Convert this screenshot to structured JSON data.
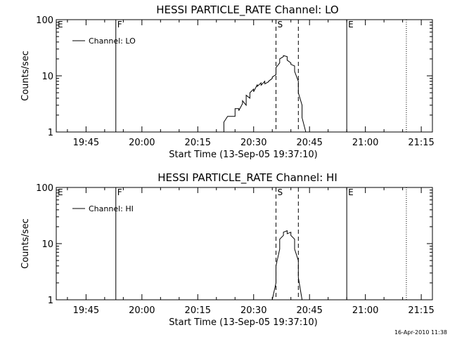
{
  "footer": {
    "timestamp": "16-Apr-2010 11:38"
  },
  "chart_data": [
    {
      "type": "line",
      "title": "HESSI PARTICLE_RATE Channel: LO",
      "xlabel": "Start Time (13-Sep-05 19:37:10)",
      "ylabel": "Counts/sec",
      "y_scale": "log",
      "ylim": [
        1,
        100
      ],
      "y_ticks": [
        {
          "value": 1,
          "label": "1"
        },
        {
          "value": 10,
          "label": "10"
        },
        {
          "value": 100,
          "label": "100"
        }
      ],
      "xlim": [
        "19:37",
        "21:18"
      ],
      "x_ticks": [
        "19:45",
        "20:00",
        "20:15",
        "20:30",
        "20:45",
        "21:00",
        "21:15"
      ],
      "legend": {
        "position": "top-left",
        "entries": [
          "Channel: LO"
        ]
      },
      "markers": [
        {
          "time": "19:37",
          "label": "E",
          "style": "solid"
        },
        {
          "time": "19:53",
          "label": "F",
          "style": "solid"
        },
        {
          "time": "20:36",
          "label": "S",
          "style": "dashed"
        },
        {
          "time": "20:42",
          "label": "",
          "style": "dashed"
        },
        {
          "time": "20:55",
          "label": "E",
          "style": "solid"
        },
        {
          "time": "21:11",
          "label": "",
          "style": "dotted"
        }
      ],
      "series": [
        {
          "name": "Channel: LO",
          "x": [
            "20:22",
            "20:22",
            "20:23",
            "20:23",
            "20:24",
            "20:25",
            "20:25",
            "20:26",
            "20:26",
            "20:27",
            "20:27",
            "20:28",
            "20:28",
            "20:29",
            "20:29",
            "20:30",
            "20:30",
            "20:31",
            "20:31",
            "20:32",
            "20:32",
            "20:33",
            "20:33",
            "20:34",
            "20:34",
            "20:35",
            "20:35",
            "20:36",
            "20:36",
            "20:37",
            "20:37",
            "20:38",
            "20:38",
            "20:39",
            "20:39",
            "20:40",
            "20:40",
            "20:41",
            "20:41",
            "20:42",
            "20:42",
            "20:43",
            "20:43",
            "20:44"
          ],
          "values": [
            1,
            1.5,
            1.9,
            1.9,
            1.9,
            1.9,
            2.6,
            2.6,
            2.4,
            3.2,
            3.6,
            3.0,
            4.5,
            4.0,
            5.0,
            5.8,
            5.2,
            7.0,
            6.5,
            7.5,
            6.8,
            8.0,
            7.2,
            7.8,
            8.0,
            9.0,
            9.5,
            10.5,
            14,
            17,
            20,
            22,
            23,
            22,
            19,
            17,
            16,
            15,
            12,
            8,
            5,
            3,
            1.8,
            1
          ]
        }
      ]
    },
    {
      "type": "line",
      "title": "HESSI PARTICLE_RATE Channel: HI",
      "xlabel": "Start Time (13-Sep-05 19:37:10)",
      "ylabel": "Counts/sec",
      "y_scale": "log",
      "ylim": [
        1,
        100
      ],
      "y_ticks": [
        {
          "value": 1,
          "label": "1"
        },
        {
          "value": 10,
          "label": "10"
        },
        {
          "value": 100,
          "label": "100"
        }
      ],
      "xlim": [
        "19:37",
        "21:18"
      ],
      "x_ticks": [
        "19:45",
        "20:00",
        "20:15",
        "20:30",
        "20:45",
        "21:00",
        "21:15"
      ],
      "legend": {
        "position": "top-left",
        "entries": [
          "Channel: HI"
        ]
      },
      "markers": [
        {
          "time": "19:37",
          "label": "E",
          "style": "solid"
        },
        {
          "time": "19:53",
          "label": "F",
          "style": "solid"
        },
        {
          "time": "20:36",
          "label": "S",
          "style": "dashed"
        },
        {
          "time": "20:42",
          "label": "",
          "style": "dashed"
        },
        {
          "time": "20:55",
          "label": "E",
          "style": "solid"
        },
        {
          "time": "21:11",
          "label": "",
          "style": "dotted"
        }
      ],
      "series": [
        {
          "name": "Channel: HI",
          "x": [
            "20:35",
            "20:36",
            "20:36",
            "20:37",
            "20:37",
            "20:38",
            "20:38",
            "20:39",
            "20:39",
            "20:40",
            "20:40",
            "20:41",
            "20:41",
            "20:42",
            "20:42",
            "20:43"
          ],
          "values": [
            1,
            2,
            4,
            8,
            12,
            14,
            16,
            17,
            15,
            16,
            14,
            12,
            8,
            5,
            2.5,
            1
          ]
        }
      ]
    }
  ]
}
